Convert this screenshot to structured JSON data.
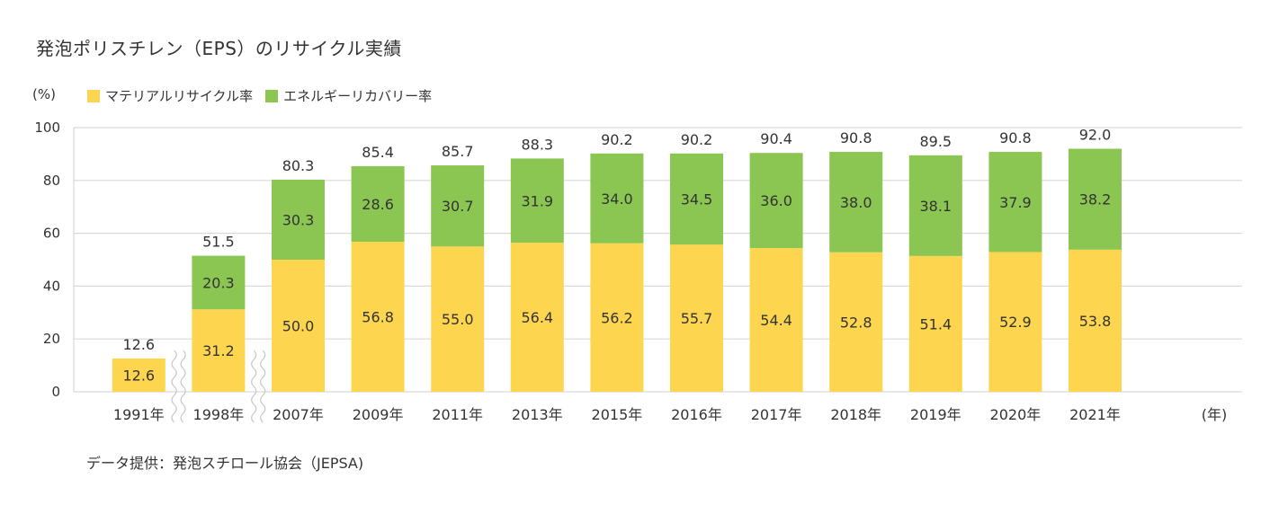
{
  "title": "発泡ポリスチレン（EPS）のリサイクル実績",
  "legend": {
    "material_label": "マテリアルリサイクル率",
    "energy_label": "エネルギーリカバリー率"
  },
  "source": "データ提供：発泡スチロール協会（JEPSA)",
  "colors": {
    "material": "#fdd54f",
    "energy": "#8bc652",
    "grid": "#d9d9d9",
    "text": "#333333"
  },
  "chart_data": {
    "type": "bar",
    "stacked": true,
    "title": "発泡ポリスチレン（EPS）のリサイクル実績",
    "ylabel": "(%)",
    "xlabel": "(年)",
    "ylim": [
      0,
      100
    ],
    "yticks": [
      "0",
      "20",
      "40",
      "60",
      "80",
      "100"
    ],
    "grid": true,
    "categories": [
      "1991年",
      "1998年",
      "2007年",
      "2009年",
      "2011年",
      "2013年",
      "2015年",
      "2016年",
      "2017年",
      "2018年",
      "2019年",
      "2020年",
      "2021年"
    ],
    "series": [
      {
        "name": "マテリアルリサイクル率",
        "values": [
          12.6,
          31.2,
          50.0,
          56.8,
          55.0,
          56.4,
          56.2,
          55.7,
          54.4,
          52.8,
          51.4,
          52.9,
          53.8
        ],
        "labels": [
          "12.6",
          "31.2",
          "50.0",
          "56.8",
          "55.0",
          "56.4",
          "56.2",
          "55.7",
          "54.4",
          "52.8",
          "51.4",
          "52.9",
          "53.8"
        ]
      },
      {
        "name": "エネルギーリカバリー率",
        "values": [
          null,
          20.3,
          30.3,
          28.6,
          30.7,
          31.9,
          34.0,
          34.5,
          36.0,
          38.0,
          38.1,
          37.9,
          38.2
        ],
        "labels": [
          "",
          "20.3",
          "30.3",
          "28.6",
          "30.7",
          "31.9",
          "34.0",
          "34.5",
          "36.0",
          "38.0",
          "38.1",
          "37.9",
          "38.2"
        ]
      }
    ],
    "totals": [
      12.6,
      51.5,
      80.3,
      85.4,
      85.7,
      88.3,
      90.2,
      90.2,
      90.4,
      90.8,
      89.5,
      90.8,
      92.0
    ],
    "total_labels": [
      "12.6",
      "51.5",
      "80.3",
      "85.4",
      "85.7",
      "88.3",
      "90.2",
      "90.2",
      "90.4",
      "90.8",
      "89.5",
      "90.8",
      "92.0"
    ],
    "axis_breaks_after": [
      "1991年",
      "1998年"
    ]
  }
}
